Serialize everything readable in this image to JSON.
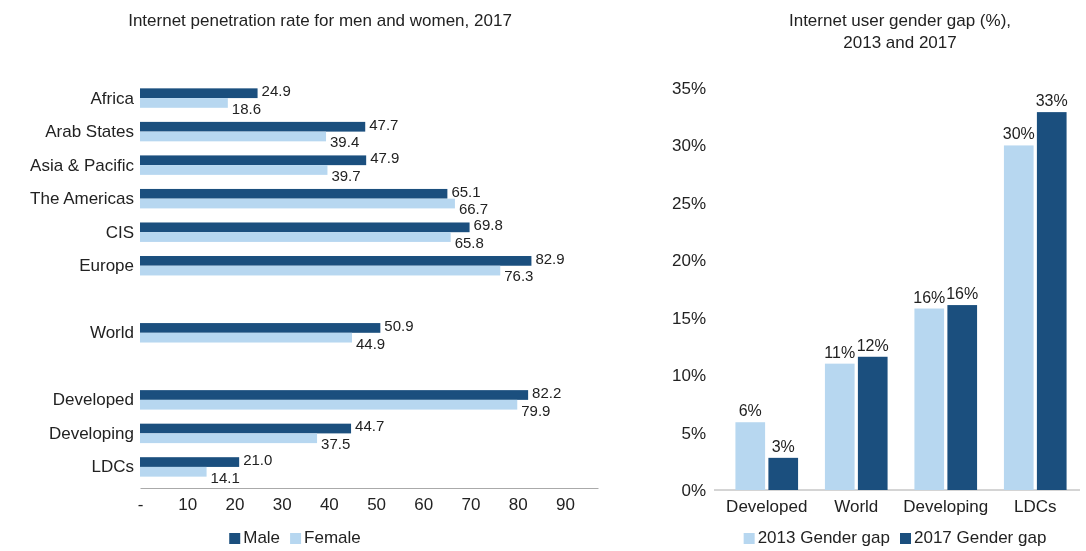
{
  "chart_data": [
    {
      "type": "bar",
      "orientation": "horizontal",
      "title": "Internet penetration rate for men and women, 2017",
      "categories": [
        "Africa",
        "Arab States",
        "Asia & Pacific",
        "The Americas",
        "CIS",
        "Europe",
        null,
        "World",
        null,
        "Developed",
        "Developing",
        "LDCs"
      ],
      "series": [
        {
          "name": "Male",
          "color": "#1b4f7e",
          "values": [
            24.9,
            47.7,
            47.9,
            65.1,
            69.8,
            82.9,
            null,
            50.9,
            null,
            82.2,
            44.7,
            21.0
          ],
          "value_labels": [
            "24.9",
            "47.7",
            "47.9",
            "65.1",
            "69.8",
            "82.9",
            null,
            "50.9",
            null,
            "82.2",
            "44.7",
            "21.0"
          ]
        },
        {
          "name": "Female",
          "color": "#b7d7f0",
          "values": [
            18.6,
            39.4,
            39.7,
            66.7,
            65.8,
            76.3,
            null,
            44.9,
            null,
            79.9,
            37.5,
            14.1
          ],
          "value_labels": [
            "18.6",
            "39.4",
            "39.7",
            "66.7",
            "65.8",
            "76.3",
            null,
            "44.9",
            null,
            "79.9",
            "37.5",
            "14.1"
          ]
        }
      ],
      "xlim": [
        0,
        97
      ],
      "xticks": [
        {
          "value": 0,
          "label": "-"
        },
        10,
        20,
        30,
        40,
        50,
        60,
        70,
        80,
        90
      ],
      "legend": "bottom"
    },
    {
      "type": "bar",
      "title": "Internet user gender gap (%), 2013 and 2017",
      "categories": [
        "Developed",
        "World",
        "Developing",
        "LDCs"
      ],
      "series": [
        {
          "name": "2013 Gender gap",
          "color": "#b7d7f0",
          "values": [
            5.9,
            11,
            15.8,
            30
          ],
          "value_labels": [
            "6%",
            "11%",
            "16%",
            "30%"
          ]
        },
        {
          "name": "2017 Gender gap",
          "color": "#1b4f7e",
          "values": [
            2.8,
            11.6,
            16.1,
            32.9
          ],
          "value_labels": [
            "3%",
            "12%",
            "16%",
            "33%"
          ]
        }
      ],
      "ylim": [
        0,
        35
      ],
      "yticks": [
        {
          "value": 0,
          "label": "0%"
        },
        {
          "value": 5,
          "label": "5%"
        },
        {
          "value": 10,
          "label": "10%"
        },
        {
          "value": 15,
          "label": "15%"
        },
        {
          "value": 20,
          "label": "20%"
        },
        {
          "value": 25,
          "label": "25%"
        },
        {
          "value": 30,
          "label": "30%"
        },
        {
          "value": 35,
          "label": "35%"
        }
      ],
      "legend": "bottom"
    }
  ]
}
